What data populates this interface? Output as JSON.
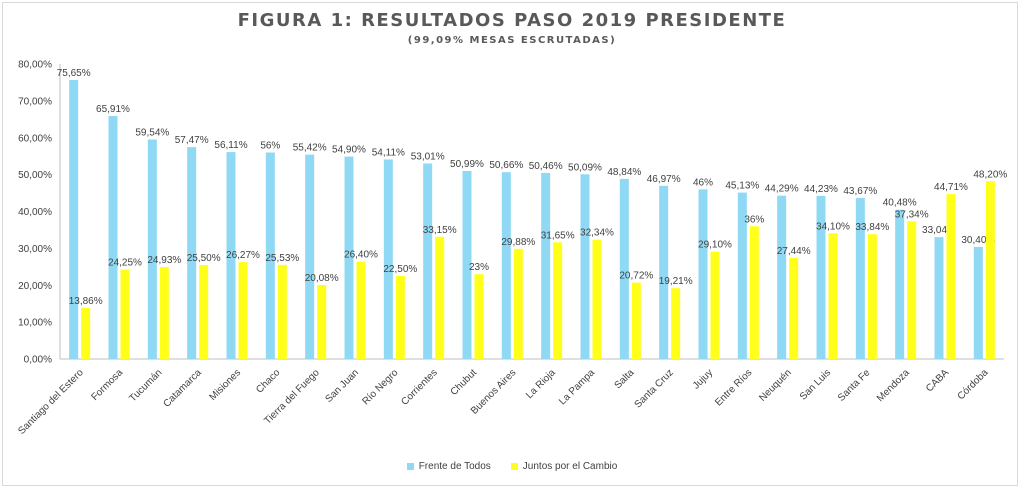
{
  "chart_data": {
    "type": "bar",
    "title": "FIGURA 1: RESULTADOS PASO 2019 PRESIDENTE",
    "subtitle": "(99,09% MESAS ESCRUTADAS)",
    "xlabel": "",
    "ylabel": "",
    "ylim": [
      0,
      80
    ],
    "yticks": [
      "0,00%",
      "10,00%",
      "20,00%",
      "30,00%",
      "40,00%",
      "50,00%",
      "60,00%",
      "70,00%",
      "80,00%"
    ],
    "grid": false,
    "legend_position": "bottom",
    "categories": [
      "Santiago del Estero",
      "Formosa",
      "Tucumán",
      "Catamarca",
      "Misiones",
      "Chaco",
      "Tierra del Fuego",
      "San Juan",
      "Río Negro",
      "Corrientes",
      "Chubut",
      "Buenos Aires",
      "La Rioja",
      "La Pampa",
      "Salta",
      "Santa Cruz",
      "Jujuy",
      "Entre Ríos",
      "Neuquén",
      "San Luis",
      "Santa Fe",
      "Mendoza",
      "CABA",
      "Córdoba"
    ],
    "series": [
      {
        "name": "Frente de Todos",
        "color": "#8fd9f5",
        "values": [
          75.65,
          65.91,
          59.54,
          57.47,
          56.11,
          56,
          55.42,
          54.9,
          54.11,
          53.01,
          50.99,
          50.66,
          50.46,
          50.09,
          48.84,
          46.97,
          46,
          45.13,
          44.29,
          44.23,
          43.67,
          40.48,
          33.04,
          30.4
        ],
        "labels": [
          "75,65%",
          "65,91%",
          "59,54%",
          "57,47%",
          "56,11%",
          "56%",
          "55,42%",
          "54,90%",
          "54,11%",
          "53,01%",
          "50,99%",
          "50,66%",
          "50,46%",
          "50,09%",
          "48,84%",
          "46,97%",
          "46%",
          "45,13%",
          "44,29%",
          "44,23%",
          "43,67%",
          "40,48%",
          "33,04%",
          "30,40%"
        ]
      },
      {
        "name": "Juntos por el Cambio",
        "color": "#ffff19",
        "values": [
          13.86,
          24.25,
          24.93,
          25.5,
          26.27,
          25.53,
          20.08,
          26.4,
          22.5,
          33.15,
          23,
          29.88,
          31.65,
          32.34,
          20.72,
          19.21,
          29.1,
          36,
          27.44,
          34.1,
          33.84,
          37.34,
          44.71,
          48.2
        ],
        "labels": [
          "13,86%",
          "24,25%",
          "24,93%",
          "25,50%",
          "26,27%",
          "25,53%",
          "20,08%",
          "26,40%",
          "22,50%",
          "33,15%",
          "23%",
          "29,88%",
          "31,65%",
          "32,34%",
          "20,72%",
          "19,21%",
          "29,10%",
          "36%",
          "27,44%",
          "34,10%",
          "33,84%",
          "37,34%",
          "44,71%",
          "48,20%"
        ]
      }
    ]
  }
}
